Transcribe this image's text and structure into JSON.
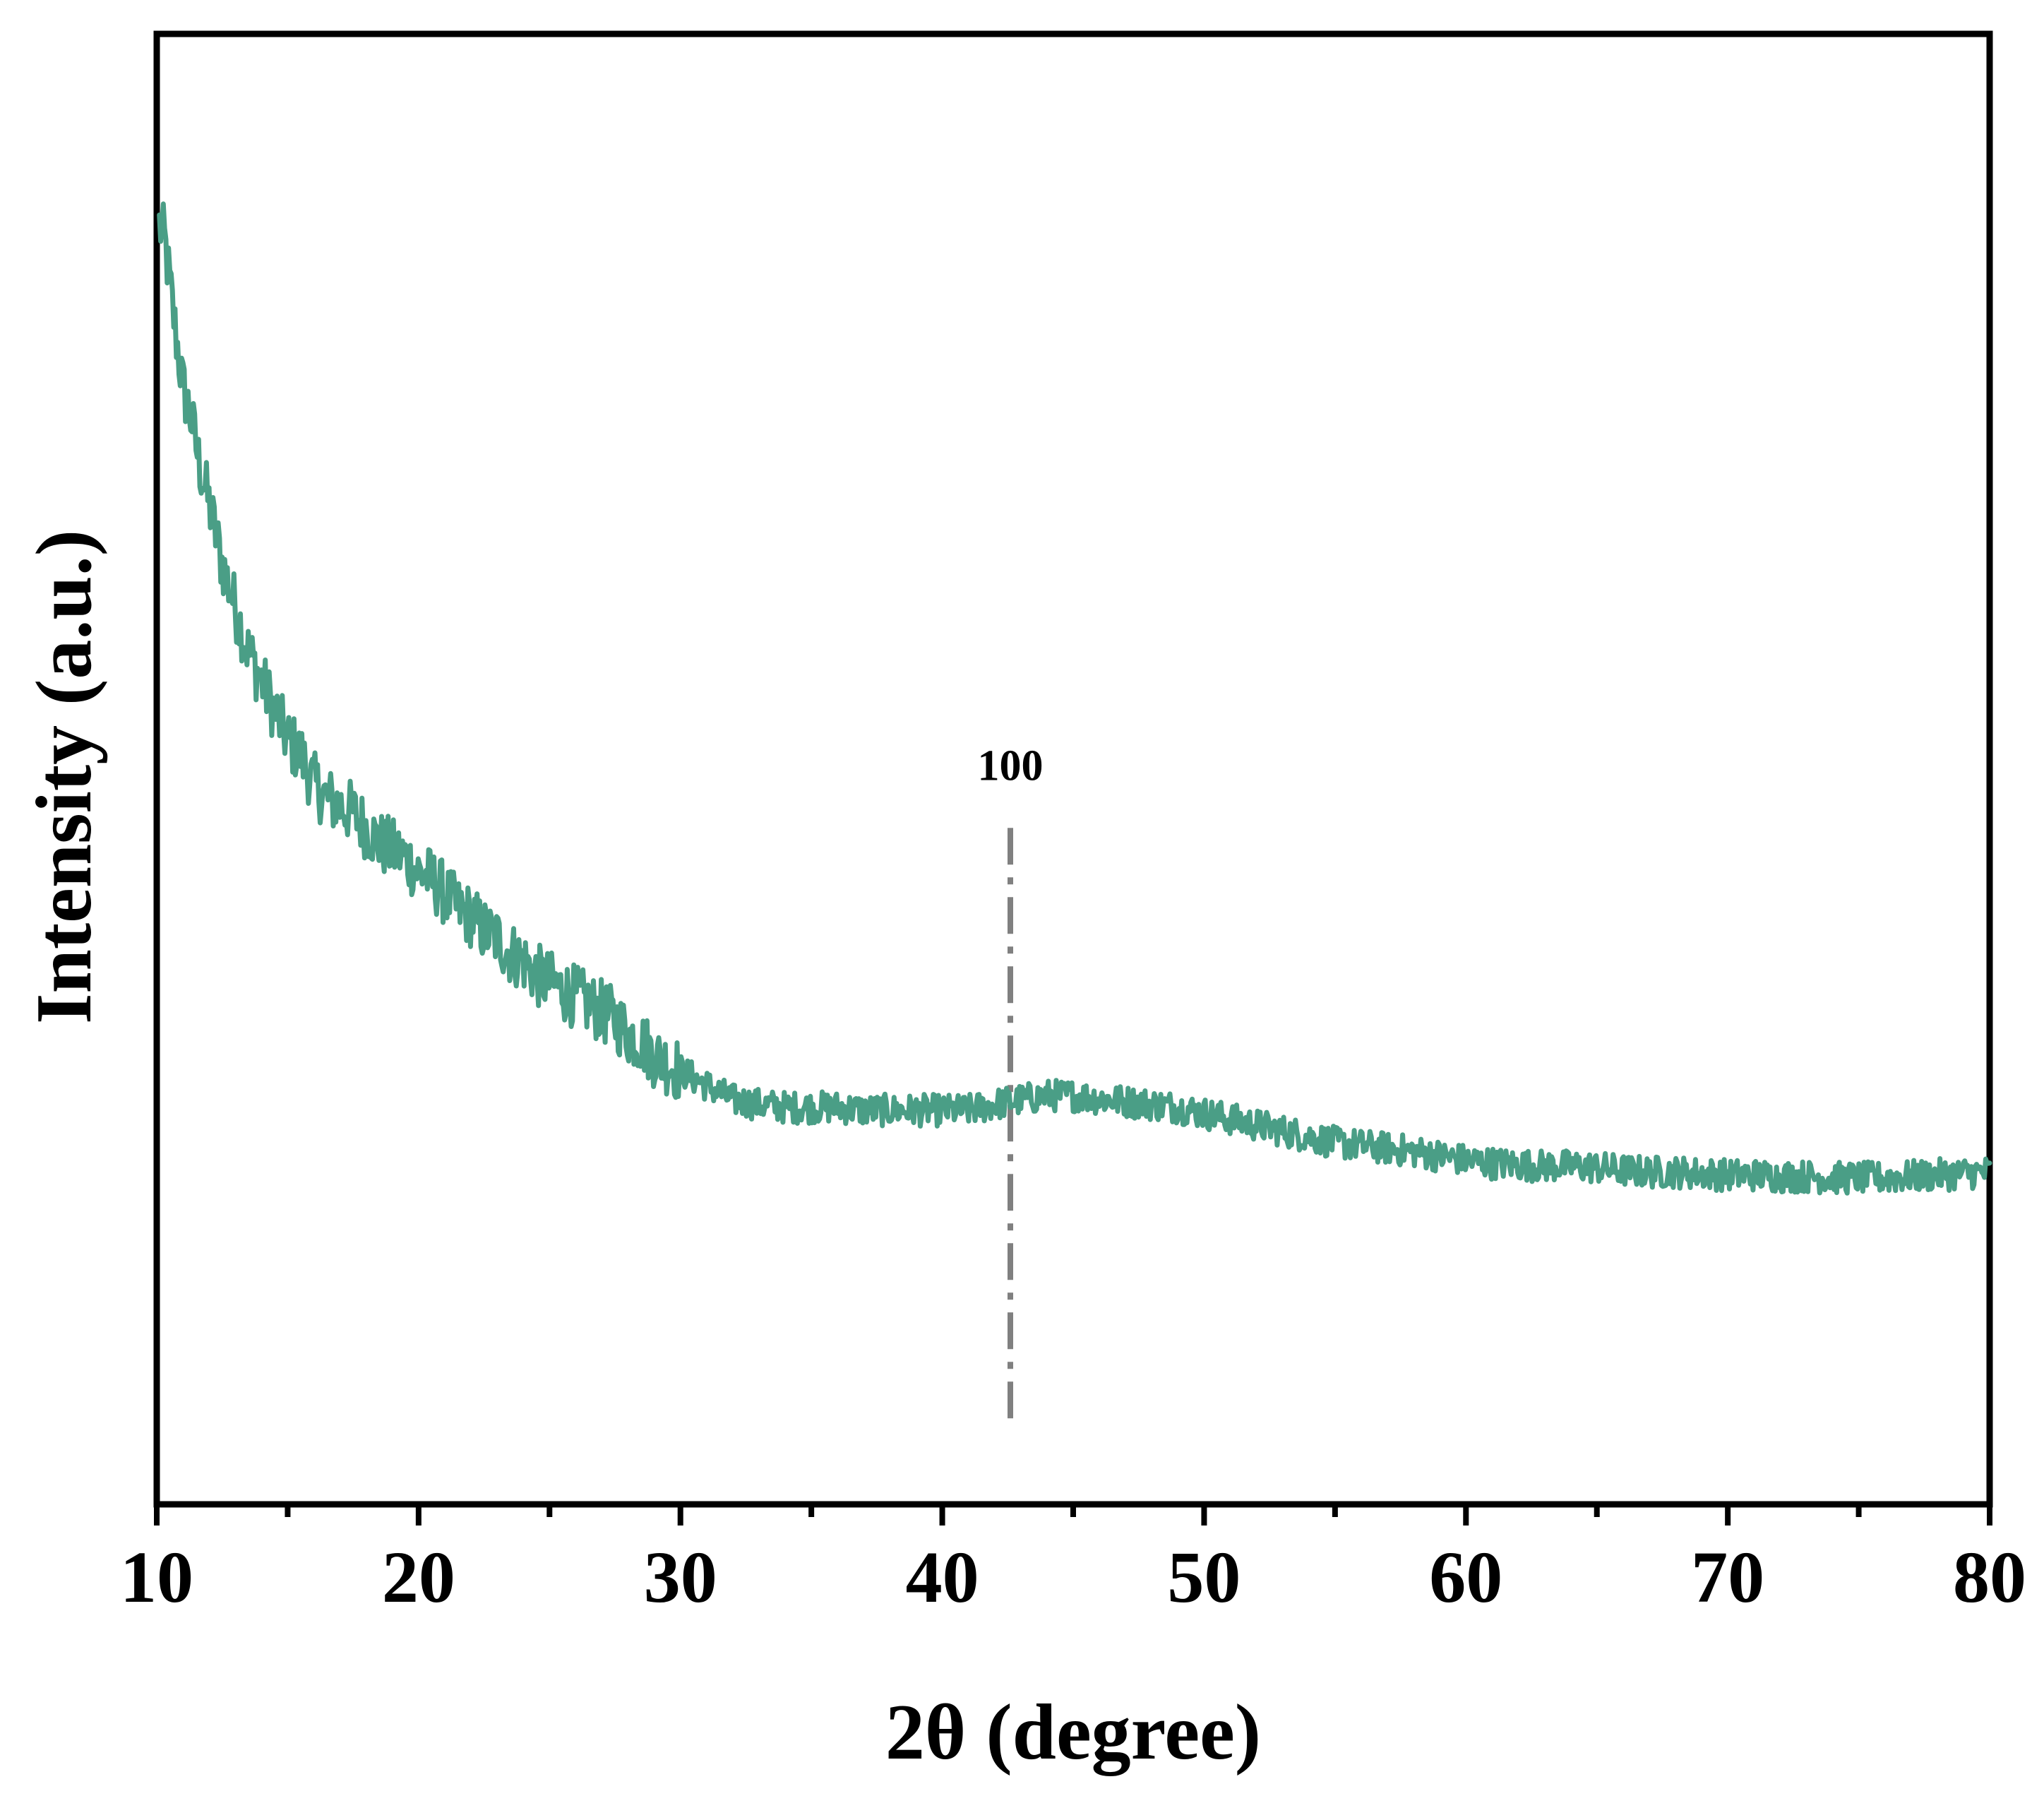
{
  "chart_data": {
    "type": "line",
    "xlabel": "2θ (degree)",
    "ylabel": "Intensity (a.u.)",
    "xlim": [
      10,
      80
    ],
    "ylim": [
      0,
      1
    ],
    "x_ticks": [
      10,
      20,
      30,
      40,
      50,
      60,
      70,
      80
    ],
    "x_minor_ticks": [
      15,
      25,
      35,
      45,
      55,
      65,
      75
    ],
    "y_ticks_shown": false,
    "grid": false,
    "legend": "none",
    "series_color": "#4a9e86",
    "annotation_color": "#808080",
    "annotations": [
      {
        "label": "100",
        "x": 42.6,
        "line_style": "dash-dot",
        "y_from": 0.05,
        "y_to": 0.46
      }
    ],
    "series": [
      {
        "x": [
          10.1,
          10.3,
          10.5,
          10.7,
          11.0,
          11.3,
          11.6,
          12.0,
          12.5,
          13.0,
          13.5,
          14.0,
          14.5,
          15.0,
          15.5,
          16.0,
          16.5,
          17.0,
          17.5,
          18.0,
          18.5,
          19.0,
          19.5,
          20.0,
          20.5,
          21.0,
          21.5,
          22.0,
          22.5,
          23.0,
          23.5,
          24.0,
          24.5,
          25.0,
          25.5,
          26.0,
          26.5,
          27.0,
          27.5,
          28.0,
          28.5,
          29.0,
          29.5,
          30.0,
          30.5,
          31.0,
          31.5,
          32.0,
          33.0,
          34.0,
          35.0,
          36.0,
          37.0,
          38.0,
          39.0,
          40.0,
          41.0,
          42.0,
          43.0,
          44.0,
          45.0,
          46.0,
          47.0,
          48.0,
          49.0,
          50.0,
          51.0,
          52.0,
          53.0,
          54.0,
          55.0,
          56.0,
          57.0,
          58.0,
          59.0,
          60.0,
          61.0,
          62.0,
          63.0,
          64.0,
          65.0,
          66.0,
          67.0,
          68.0,
          69.0,
          70.0,
          71.0,
          72.0,
          73.0,
          74.0,
          75.0,
          76.0,
          77.0,
          78.0,
          79.0,
          80.0
        ],
        "values": [
          0.87,
          0.86,
          0.83,
          0.8,
          0.76,
          0.74,
          0.71,
          0.68,
          0.64,
          0.61,
          0.58,
          0.56,
          0.54,
          0.52,
          0.51,
          0.49,
          0.48,
          0.475,
          0.47,
          0.46,
          0.45,
          0.445,
          0.44,
          0.43,
          0.425,
          0.415,
          0.405,
          0.4,
          0.39,
          0.385,
          0.375,
          0.37,
          0.36,
          0.355,
          0.35,
          0.345,
          0.34,
          0.335,
          0.33,
          0.32,
          0.315,
          0.305,
          0.3,
          0.295,
          0.29,
          0.285,
          0.28,
          0.275,
          0.272,
          0.27,
          0.27,
          0.27,
          0.268,
          0.268,
          0.268,
          0.268,
          0.268,
          0.272,
          0.275,
          0.278,
          0.278,
          0.276,
          0.274,
          0.272,
          0.27,
          0.266,
          0.262,
          0.258,
          0.254,
          0.25,
          0.246,
          0.244,
          0.242,
          0.24,
          0.237,
          0.234,
          0.232,
          0.231,
          0.23,
          0.23,
          0.229,
          0.227,
          0.226,
          0.226,
          0.225,
          0.224,
          0.224,
          0.223,
          0.223,
          0.222,
          0.222,
          0.222,
          0.223,
          0.224,
          0.225,
          0.226
        ]
      }
    ]
  }
}
